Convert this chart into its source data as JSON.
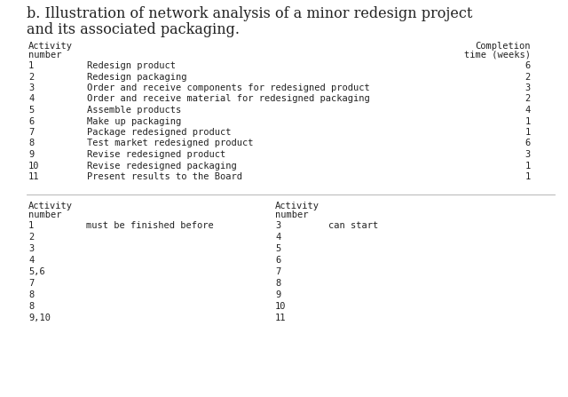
{
  "title_line1": "b. Illustration of network analysis of a minor redesign project",
  "title_line2": "and its associated packaging.",
  "top_table_rows": [
    [
      "1",
      "Redesign product",
      "6"
    ],
    [
      "2",
      "Redesign packaging",
      "2"
    ],
    [
      "3",
      "Order and receive components for redesigned product",
      "3"
    ],
    [
      "4",
      "Order and receive material for redesigned packaging",
      "2"
    ],
    [
      "5",
      "Assemble products",
      "4"
    ],
    [
      "6",
      "Make up packaging",
      "1"
    ],
    [
      "7",
      "Package redesigned product",
      "1"
    ],
    [
      "8",
      "Test market redesigned product",
      "6"
    ],
    [
      "9",
      "Revise redesigned product",
      "3"
    ],
    [
      "10",
      "Revise redesigned packaging",
      "1"
    ],
    [
      "11",
      "Present results to the Board",
      "1"
    ]
  ],
  "bottom_table_rows": [
    [
      "1",
      "3"
    ],
    [
      "2",
      "4"
    ],
    [
      "3",
      "5"
    ],
    [
      "4",
      "6"
    ],
    [
      "5,6",
      "7"
    ],
    [
      "7",
      "8"
    ],
    [
      "8",
      "9"
    ],
    [
      "8",
      "10"
    ],
    [
      "9,10",
      "11"
    ]
  ],
  "bottom_table_middle_text": "must be finished before",
  "bottom_table_right_text": "can start",
  "font_family": "monospace",
  "title_font_family": "DejaVu Serif",
  "bg_color": "#ffffff",
  "text_color": "#222222",
  "font_size_title": 11.5,
  "font_size_table": 7.5,
  "font_size_header": 7.5
}
